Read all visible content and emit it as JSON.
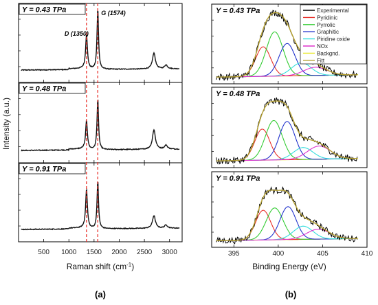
{
  "chart_data": [
    {
      "id": "a",
      "type": "line",
      "figure_label": "(a)",
      "xlabel": "Raman shift (cm",
      "xlabel_sup": "-1",
      "xlabel_end": ")",
      "ylabel": "Intensity (a.u.)",
      "xlim": [
        0,
        3250
      ],
      "xticks": [
        500,
        1000,
        1500,
        2000,
        2500,
        3000
      ],
      "reference_lines": [
        {
          "x": 1350,
          "label": "D (1350)",
          "color": "#e8302a",
          "style": "dashed"
        },
        {
          "x": 1574,
          "label": "G (1574)",
          "color": "#e8302a",
          "style": "dashed"
        }
      ],
      "panels": [
        {
          "title": "Y = 0.43 TPa",
          "peaks": [
            {
              "x": 1350,
              "height": 0.55
            },
            {
              "x": 1574,
              "height": 0.95
            },
            {
              "x": 2690,
              "height": 0.25
            },
            {
              "x": 2930,
              "height": 0.06
            }
          ]
        },
        {
          "title": "Y = 0.48 TPa",
          "peaks": [
            {
              "x": 1350,
              "height": 0.45
            },
            {
              "x": 1574,
              "height": 0.78
            },
            {
              "x": 2690,
              "height": 0.3
            },
            {
              "x": 2930,
              "height": 0.06
            }
          ]
        },
        {
          "title": "Y = 0.91 TPa",
          "peaks": [
            {
              "x": 1350,
              "height": 0.62
            },
            {
              "x": 1574,
              "height": 0.75
            },
            {
              "x": 2690,
              "height": 0.2
            },
            {
              "x": 2930,
              "height": 0.05
            }
          ]
        }
      ]
    },
    {
      "id": "b",
      "type": "line",
      "figure_label": "(b)",
      "xlabel": "Binding Energy (eV)",
      "xlim": [
        392.5,
        410
      ],
      "xticks": [
        395,
        400,
        405,
        410
      ],
      "legend": {
        "position": "top-right",
        "entries": [
          {
            "name": "Experimental",
            "color": "#000000"
          },
          {
            "name": "Pyridinic",
            "color": "#e8302a"
          },
          {
            "name": "Pyrrolic",
            "color": "#33cc33"
          },
          {
            "name": "Graphitic",
            "color": "#2233cc"
          },
          {
            "name": "Piridine oxide",
            "color": "#33dddd"
          },
          {
            "name": "NOx",
            "color": "#dd33cc"
          },
          {
            "name": "Backgnd.",
            "color": "#e8e822"
          },
          {
            "name": "Fitt",
            "color": "#b5a030"
          }
        ]
      },
      "panels": [
        {
          "title": "Y = 0.43 TPa",
          "components": [
            {
              "name": "Pyridinic",
              "center": 398.3,
              "height": 0.5,
              "sigma": 0.85
            },
            {
              "name": "Pyrrolic",
              "center": 399.6,
              "height": 0.75,
              "sigma": 0.95
            },
            {
              "name": "Graphitic",
              "center": 401.0,
              "height": 0.55,
              "sigma": 0.9
            },
            {
              "name": "Piridine oxide",
              "center": 402.6,
              "height": 0.22,
              "sigma": 1.1
            },
            {
              "name": "NOx",
              "center": 404.2,
              "height": 0.14,
              "sigma": 1.3
            }
          ]
        },
        {
          "title": "Y = 0.48 TPa",
          "components": [
            {
              "name": "Pyridinic",
              "center": 398.2,
              "height": 0.52,
              "sigma": 0.85
            },
            {
              "name": "Pyrrolic",
              "center": 399.5,
              "height": 0.66,
              "sigma": 0.95
            },
            {
              "name": "Graphitic",
              "center": 401.0,
              "height": 0.64,
              "sigma": 0.9
            },
            {
              "name": "Piridine oxide",
              "center": 402.8,
              "height": 0.2,
              "sigma": 1.1
            },
            {
              "name": "NOx",
              "center": 404.6,
              "height": 0.22,
              "sigma": 1.3
            }
          ]
        },
        {
          "title": "Y = 0.91 TPa",
          "components": [
            {
              "name": "Pyridinic",
              "center": 398.3,
              "height": 0.54,
              "sigma": 0.85
            },
            {
              "name": "Pyrrolic",
              "center": 399.6,
              "height": 0.58,
              "sigma": 0.95
            },
            {
              "name": "Graphitic",
              "center": 401.1,
              "height": 0.6,
              "sigma": 0.9
            },
            {
              "name": "Piridine oxide",
              "center": 402.8,
              "height": 0.24,
              "sigma": 1.1
            },
            {
              "name": "NOx",
              "center": 404.5,
              "height": 0.18,
              "sigma": 1.3
            }
          ]
        }
      ]
    }
  ]
}
